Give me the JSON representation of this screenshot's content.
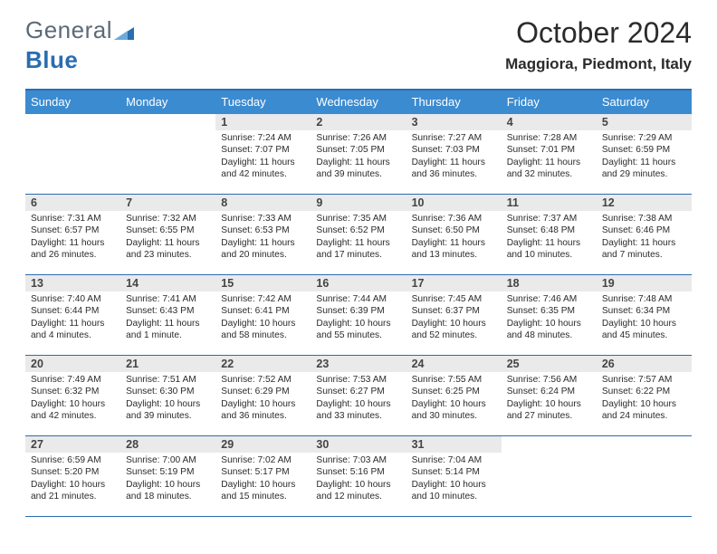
{
  "logo": {
    "text_general": "General",
    "text_blue": "Blue"
  },
  "title": "October 2024",
  "location": "Maggiora, Piedmont, Italy",
  "colors": {
    "accent": "#3b8bd0",
    "accent_border": "#2a6db0",
    "band": "#eaeaea",
    "text": "#2b2b2b",
    "logo_gray": "#5c6a78"
  },
  "days_of_week": [
    "Sunday",
    "Monday",
    "Tuesday",
    "Wednesday",
    "Thursday",
    "Friday",
    "Saturday"
  ],
  "weeks": [
    [
      null,
      null,
      {
        "n": "1",
        "sunrise": "7:24 AM",
        "sunset": "7:07 PM",
        "daylight": "11 hours and 42 minutes."
      },
      {
        "n": "2",
        "sunrise": "7:26 AM",
        "sunset": "7:05 PM",
        "daylight": "11 hours and 39 minutes."
      },
      {
        "n": "3",
        "sunrise": "7:27 AM",
        "sunset": "7:03 PM",
        "daylight": "11 hours and 36 minutes."
      },
      {
        "n": "4",
        "sunrise": "7:28 AM",
        "sunset": "7:01 PM",
        "daylight": "11 hours and 32 minutes."
      },
      {
        "n": "5",
        "sunrise": "7:29 AM",
        "sunset": "6:59 PM",
        "daylight": "11 hours and 29 minutes."
      }
    ],
    [
      {
        "n": "6",
        "sunrise": "7:31 AM",
        "sunset": "6:57 PM",
        "daylight": "11 hours and 26 minutes."
      },
      {
        "n": "7",
        "sunrise": "7:32 AM",
        "sunset": "6:55 PM",
        "daylight": "11 hours and 23 minutes."
      },
      {
        "n": "8",
        "sunrise": "7:33 AM",
        "sunset": "6:53 PM",
        "daylight": "11 hours and 20 minutes."
      },
      {
        "n": "9",
        "sunrise": "7:35 AM",
        "sunset": "6:52 PM",
        "daylight": "11 hours and 17 minutes."
      },
      {
        "n": "10",
        "sunrise": "7:36 AM",
        "sunset": "6:50 PM",
        "daylight": "11 hours and 13 minutes."
      },
      {
        "n": "11",
        "sunrise": "7:37 AM",
        "sunset": "6:48 PM",
        "daylight": "11 hours and 10 minutes."
      },
      {
        "n": "12",
        "sunrise": "7:38 AM",
        "sunset": "6:46 PM",
        "daylight": "11 hours and 7 minutes."
      }
    ],
    [
      {
        "n": "13",
        "sunrise": "7:40 AM",
        "sunset": "6:44 PM",
        "daylight": "11 hours and 4 minutes."
      },
      {
        "n": "14",
        "sunrise": "7:41 AM",
        "sunset": "6:43 PM",
        "daylight": "11 hours and 1 minute."
      },
      {
        "n": "15",
        "sunrise": "7:42 AM",
        "sunset": "6:41 PM",
        "daylight": "10 hours and 58 minutes."
      },
      {
        "n": "16",
        "sunrise": "7:44 AM",
        "sunset": "6:39 PM",
        "daylight": "10 hours and 55 minutes."
      },
      {
        "n": "17",
        "sunrise": "7:45 AM",
        "sunset": "6:37 PM",
        "daylight": "10 hours and 52 minutes."
      },
      {
        "n": "18",
        "sunrise": "7:46 AM",
        "sunset": "6:35 PM",
        "daylight": "10 hours and 48 minutes."
      },
      {
        "n": "19",
        "sunrise": "7:48 AM",
        "sunset": "6:34 PM",
        "daylight": "10 hours and 45 minutes."
      }
    ],
    [
      {
        "n": "20",
        "sunrise": "7:49 AM",
        "sunset": "6:32 PM",
        "daylight": "10 hours and 42 minutes."
      },
      {
        "n": "21",
        "sunrise": "7:51 AM",
        "sunset": "6:30 PM",
        "daylight": "10 hours and 39 minutes."
      },
      {
        "n": "22",
        "sunrise": "7:52 AM",
        "sunset": "6:29 PM",
        "daylight": "10 hours and 36 minutes."
      },
      {
        "n": "23",
        "sunrise": "7:53 AM",
        "sunset": "6:27 PM",
        "daylight": "10 hours and 33 minutes."
      },
      {
        "n": "24",
        "sunrise": "7:55 AM",
        "sunset": "6:25 PM",
        "daylight": "10 hours and 30 minutes."
      },
      {
        "n": "25",
        "sunrise": "7:56 AM",
        "sunset": "6:24 PM",
        "daylight": "10 hours and 27 minutes."
      },
      {
        "n": "26",
        "sunrise": "7:57 AM",
        "sunset": "6:22 PM",
        "daylight": "10 hours and 24 minutes."
      }
    ],
    [
      {
        "n": "27",
        "sunrise": "6:59 AM",
        "sunset": "5:20 PM",
        "daylight": "10 hours and 21 minutes."
      },
      {
        "n": "28",
        "sunrise": "7:00 AM",
        "sunset": "5:19 PM",
        "daylight": "10 hours and 18 minutes."
      },
      {
        "n": "29",
        "sunrise": "7:02 AM",
        "sunset": "5:17 PM",
        "daylight": "10 hours and 15 minutes."
      },
      {
        "n": "30",
        "sunrise": "7:03 AM",
        "sunset": "5:16 PM",
        "daylight": "10 hours and 12 minutes."
      },
      {
        "n": "31",
        "sunrise": "7:04 AM",
        "sunset": "5:14 PM",
        "daylight": "10 hours and 10 minutes."
      },
      null,
      null
    ]
  ],
  "labels": {
    "sunrise": "Sunrise: ",
    "sunset": "Sunset: ",
    "daylight": "Daylight: "
  }
}
